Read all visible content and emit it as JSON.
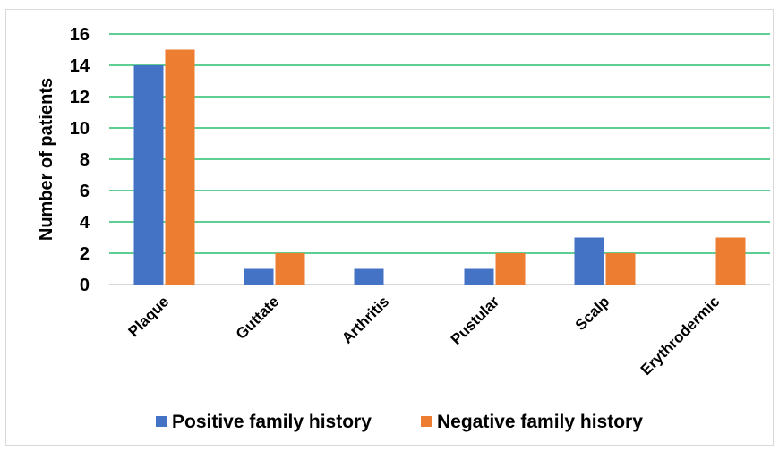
{
  "chart_data": {
    "type": "bar",
    "categories": [
      "Plaque",
      "Guttate",
      "Arthritis",
      "Pustular",
      "Scalp",
      "Erythrodermic"
    ],
    "series": [
      {
        "name": "Positive family history",
        "values": [
          14,
          1,
          1,
          1,
          3,
          0
        ],
        "color": "#4472c4"
      },
      {
        "name": "Negative family history",
        "values": [
          15,
          2,
          0,
          2,
          2,
          3
        ],
        "color": "#ed7d31"
      }
    ],
    "ylabel": "Number of patients",
    "xlabel": "",
    "ylim": [
      0,
      16
    ],
    "yticks": [
      0,
      2,
      4,
      6,
      8,
      10,
      12,
      14,
      16
    ],
    "grid": true,
    "grid_color": "#00b050",
    "legend_position": "bottom"
  }
}
